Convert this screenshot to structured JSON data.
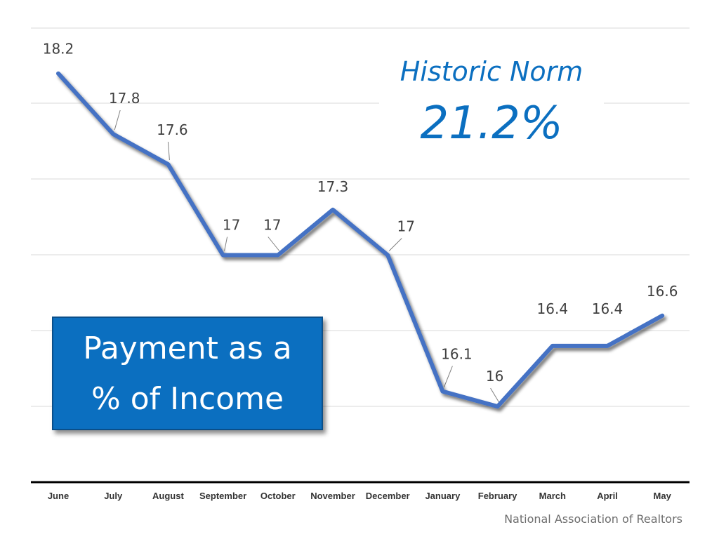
{
  "chart_data": {
    "type": "line",
    "categories": [
      "June",
      "July",
      "August",
      "September",
      "October",
      "November",
      "December",
      "January",
      "February",
      "March",
      "April",
      "May"
    ],
    "series": [
      {
        "values": [
          18.2,
          17.8,
          17.6,
          17,
          17,
          17.3,
          17,
          16.1,
          16,
          16.4,
          16.4,
          16.6
        ],
        "color": "#4472c4"
      }
    ],
    "data_labels": [
      "18.2",
      "17.8",
      "17.6",
      "17",
      "17",
      "17.3",
      "17",
      "16.1",
      "16",
      "16.4",
      "16.4",
      "16.6"
    ],
    "ylim": [
      15.5,
      18.5
    ],
    "grid": true,
    "title": "",
    "xlabel": "",
    "ylabel": ""
  },
  "callout": {
    "line1": "Payment as a",
    "line2": "% of Income",
    "color": "#0b6fc0"
  },
  "historic_norm": {
    "label": "Historic Norm",
    "value": "21.2%",
    "color": "#0b6fc0"
  },
  "source": "National Association of Realtors"
}
